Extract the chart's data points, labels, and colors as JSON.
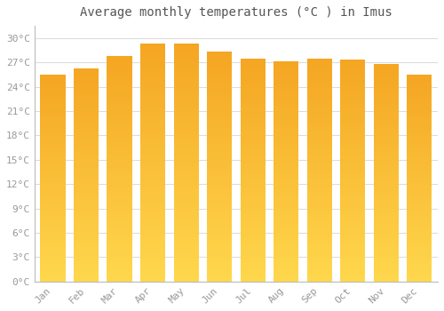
{
  "title": "Average monthly temperatures (°C ) in Imus",
  "months": [
    "Jan",
    "Feb",
    "Mar",
    "Apr",
    "May",
    "Jun",
    "Jul",
    "Aug",
    "Sep",
    "Oct",
    "Nov",
    "Dec"
  ],
  "values": [
    25.5,
    26.2,
    27.8,
    29.3,
    29.3,
    28.3,
    27.5,
    27.1,
    27.5,
    27.3,
    26.8,
    25.5
  ],
  "bar_color_bottom": "#FFD84D",
  "bar_color_top": "#F5A623",
  "background_color": "#FFFFFF",
  "plot_bg_color": "#FFFFFF",
  "grid_color": "#DDDDDD",
  "yticks": [
    0,
    3,
    6,
    9,
    12,
    15,
    18,
    21,
    24,
    27,
    30
  ],
  "ylim": [
    0,
    31.5
  ],
  "title_fontsize": 10,
  "tick_fontsize": 8,
  "title_color": "#555555",
  "tick_color": "#999999",
  "bar_width": 0.75
}
